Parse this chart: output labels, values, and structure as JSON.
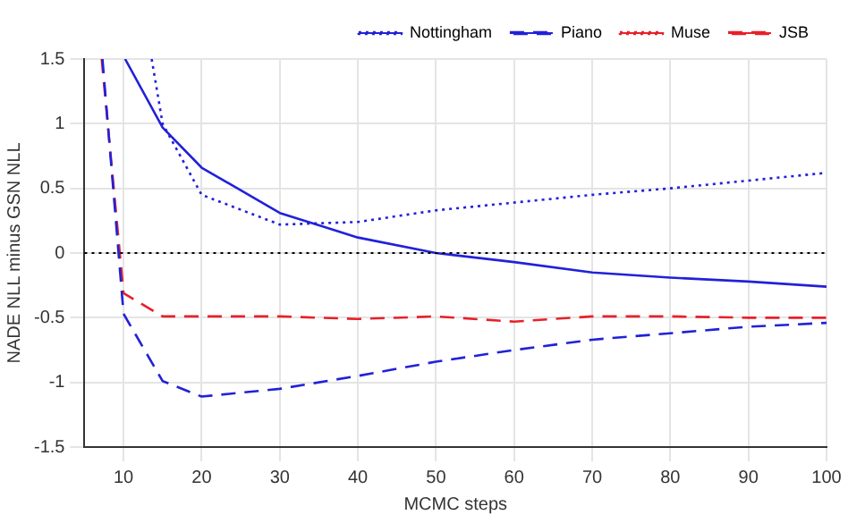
{
  "chart_data": {
    "type": "line",
    "xlabel": "MCMC steps",
    "ylabel": "NADE NLL minus GSN NLL",
    "xlim": [
      5,
      100
    ],
    "ylim": [
      -1.5,
      1.5
    ],
    "xticks": [
      10,
      20,
      30,
      40,
      50,
      60,
      70,
      80,
      90,
      100
    ],
    "yticks": [
      -1.5,
      -1,
      -0.5,
      0,
      0.5,
      1,
      1.5
    ],
    "grid": true,
    "legend": "top right",
    "marker": "none",
    "series": [
      {
        "color": "#2121d9",
        "line_style": "solid",
        "x": [
          10.2,
          15,
          20,
          30,
          40,
          50,
          60,
          70,
          80,
          90,
          100
        ],
        "values": [
          1.5,
          0.97,
          0.66,
          0.31,
          0.12,
          0,
          -0.07,
          -0.15,
          -0.19,
          -0.22,
          -0.26
        ]
      },
      {
        "name": "Nottingham",
        "color": "#2121d9",
        "line_style": "dotted",
        "x": [
          13.6,
          15,
          20,
          30,
          40,
          50,
          60,
          70,
          80,
          90,
          100
        ],
        "values": [
          1.5,
          1.0,
          0.45,
          0.22,
          0.24,
          0.33,
          0.39,
          0.45,
          0.5,
          0.56,
          0.62
        ]
      },
      {
        "name": "Piano",
        "color": "#2121d9",
        "line_style": "dashed",
        "x": [
          7.3,
          10,
          15,
          20,
          30,
          40,
          50,
          60,
          70,
          80,
          90,
          100
        ],
        "values": [
          1.5,
          -0.47,
          -0.99,
          -1.11,
          -1.05,
          -0.95,
          -0.84,
          -0.75,
          -0.67,
          -0.62,
          -0.57,
          -0.54
        ]
      },
      {
        "name": "Muse",
        "color": "#e8202a",
        "line_style": "dotted"
      },
      {
        "name": "JSB",
        "color": "#e8202a",
        "line_style": "dashed",
        "x": [
          7.2,
          10,
          15,
          20,
          30,
          40,
          50,
          60,
          70,
          80,
          90,
          100
        ],
        "values": [
          1.5,
          -0.31,
          -0.49,
          -0.49,
          -0.49,
          -0.51,
          -0.49,
          -0.53,
          -0.49,
          -0.49,
          -0.5,
          -0.5
        ]
      }
    ],
    "ref_lines": [
      {
        "axis": "y",
        "value": 0,
        "color": "#000000",
        "line_style": "dotted"
      }
    ]
  }
}
